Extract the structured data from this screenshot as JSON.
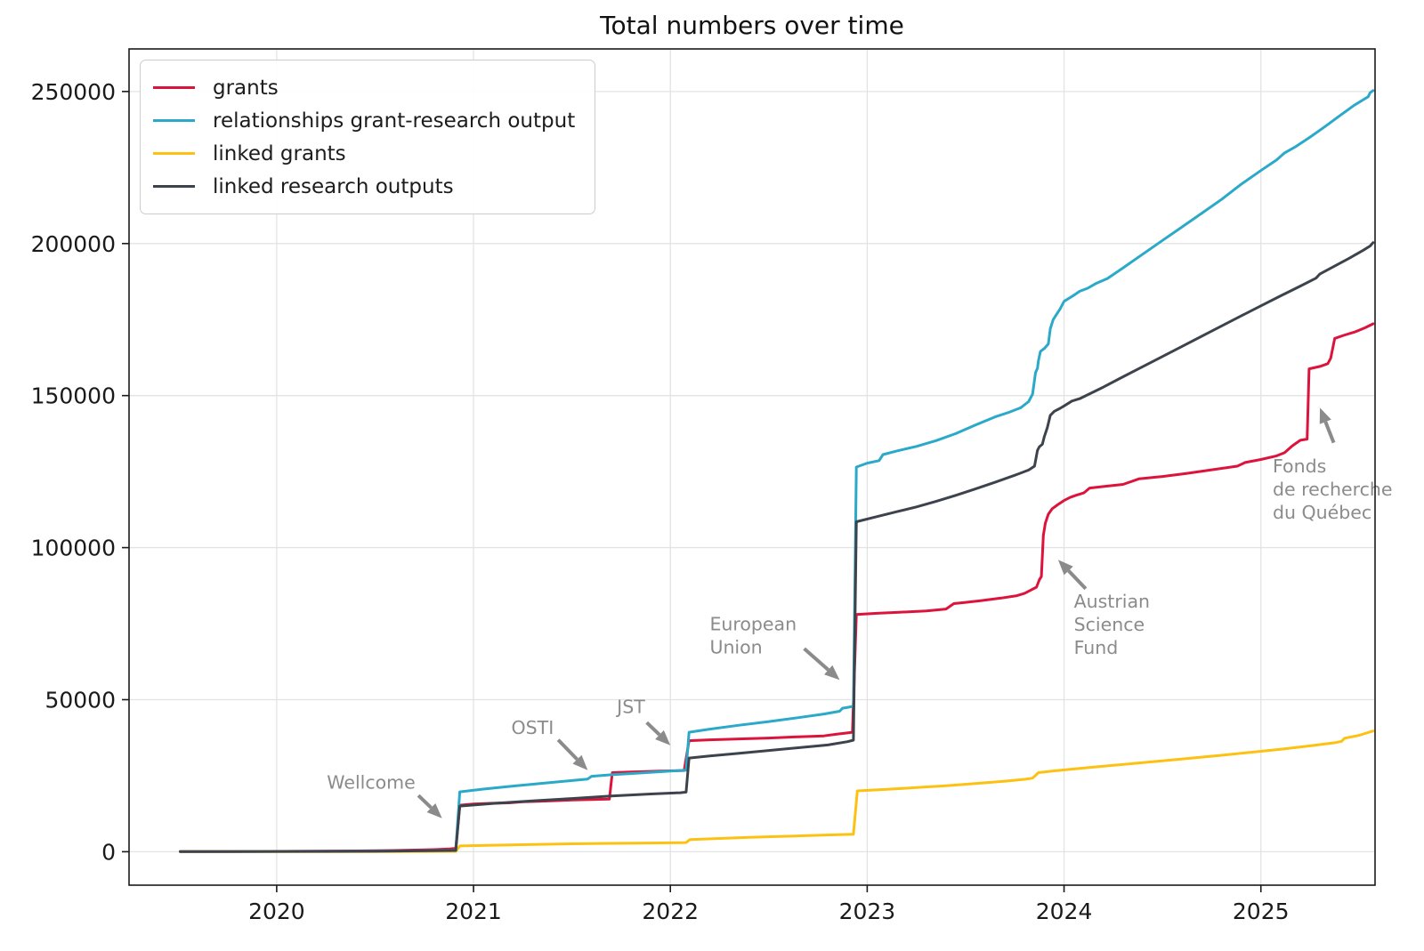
{
  "chart_data": {
    "type": "line",
    "title": "Total numbers over time",
    "xlabel": "",
    "ylabel": "",
    "grid": true,
    "legend_position": "upper left",
    "xlim": [
      2019.25,
      2025.58
    ],
    "ylim": [
      -11000,
      264000
    ],
    "x_ticks": [
      2020,
      2021,
      2022,
      2023,
      2024,
      2025
    ],
    "x_tick_labels": [
      "2020",
      "2021",
      "2022",
      "2023",
      "2024",
      "2025"
    ],
    "y_ticks": [
      0,
      50000,
      100000,
      150000,
      200000,
      250000
    ],
    "y_tick_labels": [
      "0",
      "50000",
      "100000",
      "150000",
      "200000",
      "250000"
    ],
    "colors": {
      "grid": "#e3e3e3",
      "spine": "#1a1a1a",
      "annotation": "#8b8b8b",
      "tick_label": "#1a1a1a"
    },
    "series": [
      {
        "name": "grants",
        "color": "#dc143c",
        "points": [
          [
            2019.51,
            50
          ],
          [
            2019.8,
            80
          ],
          [
            2020.1,
            150
          ],
          [
            2020.4,
            250
          ],
          [
            2020.6,
            400
          ],
          [
            2020.8,
            700
          ],
          [
            2020.88,
            900
          ],
          [
            2020.91,
            1100
          ],
          [
            2020.93,
            15300
          ],
          [
            2021.0,
            15700
          ],
          [
            2021.1,
            15950
          ],
          [
            2021.18,
            16050
          ],
          [
            2021.25,
            16400
          ],
          [
            2021.33,
            16550
          ],
          [
            2021.42,
            16800
          ],
          [
            2021.5,
            17000
          ],
          [
            2021.6,
            17150
          ],
          [
            2021.69,
            17300
          ],
          [
            2021.705,
            26000
          ],
          [
            2021.8,
            26200
          ],
          [
            2021.95,
            26500
          ],
          [
            2022.07,
            26700
          ],
          [
            2022.095,
            36500
          ],
          [
            2022.2,
            36800
          ],
          [
            2022.35,
            37100
          ],
          [
            2022.5,
            37400
          ],
          [
            2022.65,
            37800
          ],
          [
            2022.78,
            38100
          ],
          [
            2022.85,
            38700
          ],
          [
            2022.88,
            38900
          ],
          [
            2022.925,
            39300
          ],
          [
            2022.945,
            78000
          ],
          [
            2023.05,
            78400
          ],
          [
            2023.15,
            78700
          ],
          [
            2023.3,
            79200
          ],
          [
            2023.4,
            79800
          ],
          [
            2023.44,
            81600
          ],
          [
            2023.5,
            82000
          ],
          [
            2023.58,
            82600
          ],
          [
            2023.68,
            83400
          ],
          [
            2023.76,
            84200
          ],
          [
            2023.8,
            85000
          ],
          [
            2023.83,
            86000
          ],
          [
            2023.86,
            87000
          ],
          [
            2023.875,
            89500
          ],
          [
            2023.885,
            90500
          ],
          [
            2023.895,
            104000
          ],
          [
            2023.905,
            108000
          ],
          [
            2023.92,
            111000
          ],
          [
            2023.94,
            112800
          ],
          [
            2023.97,
            114200
          ],
          [
            2024.0,
            115500
          ],
          [
            2024.03,
            116500
          ],
          [
            2024.06,
            117200
          ],
          [
            2024.1,
            118000
          ],
          [
            2024.13,
            119600
          ],
          [
            2024.2,
            120100
          ],
          [
            2024.3,
            120800
          ],
          [
            2024.38,
            122600
          ],
          [
            2024.5,
            123400
          ],
          [
            2024.62,
            124400
          ],
          [
            2024.75,
            125600
          ],
          [
            2024.88,
            126800
          ],
          [
            2024.92,
            128000
          ],
          [
            2025.0,
            129000
          ],
          [
            2025.08,
            130200
          ],
          [
            2025.12,
            131200
          ],
          [
            2025.16,
            133500
          ],
          [
            2025.2,
            135300
          ],
          [
            2025.235,
            135700
          ],
          [
            2025.245,
            158800
          ],
          [
            2025.3,
            159600
          ],
          [
            2025.34,
            160500
          ],
          [
            2025.355,
            162300
          ],
          [
            2025.375,
            168800
          ],
          [
            2025.42,
            169800
          ],
          [
            2025.48,
            171000
          ],
          [
            2025.53,
            172300
          ],
          [
            2025.57,
            173600
          ]
        ]
      },
      {
        "name": "relationships grant-research output",
        "color": "#2aa9c9",
        "points": [
          [
            2019.51,
            60
          ],
          [
            2020.3,
            150
          ],
          [
            2020.7,
            300
          ],
          [
            2020.91,
            500
          ],
          [
            2020.93,
            19700
          ],
          [
            2021.05,
            20600
          ],
          [
            2021.2,
            21600
          ],
          [
            2021.35,
            22500
          ],
          [
            2021.5,
            23400
          ],
          [
            2021.58,
            23900
          ],
          [
            2021.6,
            24800
          ],
          [
            2021.7,
            25300
          ],
          [
            2021.85,
            25900
          ],
          [
            2022.0,
            26500
          ],
          [
            2022.08,
            26800
          ],
          [
            2022.095,
            39300
          ],
          [
            2022.2,
            40300
          ],
          [
            2022.35,
            41600
          ],
          [
            2022.5,
            42800
          ],
          [
            2022.65,
            44100
          ],
          [
            2022.78,
            45300
          ],
          [
            2022.86,
            46200
          ],
          [
            2022.875,
            47200
          ],
          [
            2022.93,
            47800
          ],
          [
            2022.945,
            126500
          ],
          [
            2023.0,
            127800
          ],
          [
            2023.06,
            128600
          ],
          [
            2023.08,
            130600
          ],
          [
            2023.15,
            131800
          ],
          [
            2023.25,
            133300
          ],
          [
            2023.35,
            135200
          ],
          [
            2023.45,
            137500
          ],
          [
            2023.55,
            140300
          ],
          [
            2023.65,
            143000
          ],
          [
            2023.72,
            144500
          ],
          [
            2023.78,
            146000
          ],
          [
            2023.82,
            148000
          ],
          [
            2023.84,
            150500
          ],
          [
            2023.855,
            157500
          ],
          [
            2023.865,
            159000
          ],
          [
            2023.87,
            161500
          ],
          [
            2023.88,
            164500
          ],
          [
            2023.9,
            165500
          ],
          [
            2023.92,
            167000
          ],
          [
            2023.93,
            172000
          ],
          [
            2023.945,
            175000
          ],
          [
            2023.96,
            176500
          ],
          [
            2023.98,
            178500
          ],
          [
            2024.0,
            181000
          ],
          [
            2024.05,
            183000
          ],
          [
            2024.08,
            184300
          ],
          [
            2024.12,
            185300
          ],
          [
            2024.16,
            186800
          ],
          [
            2024.22,
            188500
          ],
          [
            2024.3,
            192000
          ],
          [
            2024.4,
            196500
          ],
          [
            2024.5,
            201000
          ],
          [
            2024.6,
            205500
          ],
          [
            2024.7,
            210000
          ],
          [
            2024.8,
            214500
          ],
          [
            2024.9,
            219500
          ],
          [
            2025.0,
            224000
          ],
          [
            2025.08,
            227500
          ],
          [
            2025.12,
            229800
          ],
          [
            2025.18,
            232000
          ],
          [
            2025.25,
            235000
          ],
          [
            2025.32,
            238200
          ],
          [
            2025.4,
            242000
          ],
          [
            2025.47,
            245300
          ],
          [
            2025.52,
            247300
          ],
          [
            2025.545,
            248300
          ],
          [
            2025.555,
            249600
          ],
          [
            2025.57,
            250300
          ]
        ]
      },
      {
        "name": "linked grants",
        "color": "#fdc112",
        "points": [
          [
            2019.51,
            20
          ],
          [
            2020.6,
            60
          ],
          [
            2020.91,
            120
          ],
          [
            2020.93,
            1900
          ],
          [
            2021.1,
            2150
          ],
          [
            2021.3,
            2400
          ],
          [
            2021.5,
            2600
          ],
          [
            2021.7,
            2750
          ],
          [
            2021.9,
            2880
          ],
          [
            2022.05,
            2950
          ],
          [
            2022.08,
            3000
          ],
          [
            2022.1,
            4000
          ],
          [
            2022.25,
            4350
          ],
          [
            2022.4,
            4700
          ],
          [
            2022.55,
            5000
          ],
          [
            2022.7,
            5300
          ],
          [
            2022.85,
            5600
          ],
          [
            2022.93,
            5750
          ],
          [
            2022.95,
            20000
          ],
          [
            2023.1,
            20500
          ],
          [
            2023.25,
            21100
          ],
          [
            2023.4,
            21700
          ],
          [
            2023.55,
            22400
          ],
          [
            2023.7,
            23200
          ],
          [
            2023.8,
            23800
          ],
          [
            2023.84,
            24200
          ],
          [
            2023.87,
            26000
          ],
          [
            2023.95,
            26600
          ],
          [
            2024.05,
            27200
          ],
          [
            2024.2,
            28100
          ],
          [
            2024.35,
            29000
          ],
          [
            2024.5,
            29900
          ],
          [
            2024.65,
            30800
          ],
          [
            2024.8,
            31700
          ],
          [
            2024.95,
            32700
          ],
          [
            2025.1,
            33700
          ],
          [
            2025.25,
            34800
          ],
          [
            2025.38,
            35900
          ],
          [
            2025.41,
            36300
          ],
          [
            2025.425,
            37300
          ],
          [
            2025.5,
            38300
          ],
          [
            2025.57,
            39700
          ]
        ]
      },
      {
        "name": "linked research outputs",
        "color": "#3d434c",
        "points": [
          [
            2019.51,
            40
          ],
          [
            2020.5,
            150
          ],
          [
            2020.91,
            400
          ],
          [
            2020.93,
            15000
          ],
          [
            2021.1,
            15900
          ],
          [
            2021.3,
            16700
          ],
          [
            2021.5,
            17500
          ],
          [
            2021.7,
            18300
          ],
          [
            2021.9,
            19000
          ],
          [
            2022.05,
            19400
          ],
          [
            2022.08,
            19600
          ],
          [
            2022.095,
            30800
          ],
          [
            2022.2,
            31500
          ],
          [
            2022.35,
            32400
          ],
          [
            2022.5,
            33300
          ],
          [
            2022.65,
            34200
          ],
          [
            2022.8,
            35100
          ],
          [
            2022.9,
            36200
          ],
          [
            2022.93,
            36700
          ],
          [
            2022.945,
            108500
          ],
          [
            2023.05,
            110200
          ],
          [
            2023.15,
            111800
          ],
          [
            2023.25,
            113400
          ],
          [
            2023.35,
            115200
          ],
          [
            2023.45,
            117200
          ],
          [
            2023.55,
            119300
          ],
          [
            2023.65,
            121500
          ],
          [
            2023.75,
            123800
          ],
          [
            2023.82,
            125500
          ],
          [
            2023.85,
            126800
          ],
          [
            2023.865,
            132000
          ],
          [
            2023.875,
            133200
          ],
          [
            2023.89,
            134000
          ],
          [
            2023.9,
            136500
          ],
          [
            2023.915,
            139500
          ],
          [
            2023.93,
            143500
          ],
          [
            2023.95,
            144800
          ],
          [
            2023.98,
            145800
          ],
          [
            2024.0,
            146600
          ],
          [
            2024.04,
            148200
          ],
          [
            2024.08,
            149000
          ],
          [
            2024.2,
            152800
          ],
          [
            2024.3,
            156200
          ],
          [
            2024.45,
            161200
          ],
          [
            2024.6,
            166200
          ],
          [
            2024.75,
            171200
          ],
          [
            2024.9,
            176200
          ],
          [
            2025.0,
            179500
          ],
          [
            2025.1,
            182800
          ],
          [
            2025.2,
            186000
          ],
          [
            2025.28,
            188600
          ],
          [
            2025.3,
            190000
          ],
          [
            2025.38,
            192800
          ],
          [
            2025.45,
            195200
          ],
          [
            2025.52,
            197800
          ],
          [
            2025.555,
            199200
          ],
          [
            2025.57,
            200300
          ]
        ]
      }
    ],
    "annotations": [
      {
        "id": "wellcome",
        "lines": [
          "Wellcome"
        ],
        "x": 2020.48,
        "y": 22500,
        "align": "center",
        "arrow": {
          "x1": 2020.72,
          "y1": 18500,
          "x2": 2020.84,
          "y2": 11000
        }
      },
      {
        "id": "osti",
        "lines": [
          "OSTI"
        ],
        "x": 2021.3,
        "y": 40500,
        "align": "center",
        "arrow": {
          "x1": 2021.43,
          "y1": 36800,
          "x2": 2021.58,
          "y2": 26800
        }
      },
      {
        "id": "jst",
        "lines": [
          "JST"
        ],
        "x": 2021.8,
        "y": 47300,
        "align": "center",
        "arrow": {
          "x1": 2021.88,
          "y1": 42500,
          "x2": 2022.0,
          "y2": 35000
        }
      },
      {
        "id": "european-union",
        "lines": [
          "European",
          "Union"
        ],
        "x": 2022.2,
        "y": 74500,
        "align": "left",
        "arrow": {
          "x1": 2022.68,
          "y1": 66800,
          "x2": 2022.86,
          "y2": 56500
        }
      },
      {
        "id": "austrian-science-fund",
        "lines": [
          "Austrian",
          "Science",
          "Fund"
        ],
        "x": 2024.05,
        "y": 82000,
        "align": "left",
        "arrow": {
          "x1": 2024.11,
          "y1": 86500,
          "x2": 2023.97,
          "y2": 96000
        }
      },
      {
        "id": "fonds-de-recherche-du-quebec",
        "lines": [
          "Fonds",
          "de recherche",
          "du Québec"
        ],
        "x": 2025.06,
        "y": 126500,
        "align": "left",
        "arrow": {
          "x1": 2025.37,
          "y1": 134500,
          "x2": 2025.3,
          "y2": 146000
        }
      }
    ]
  }
}
